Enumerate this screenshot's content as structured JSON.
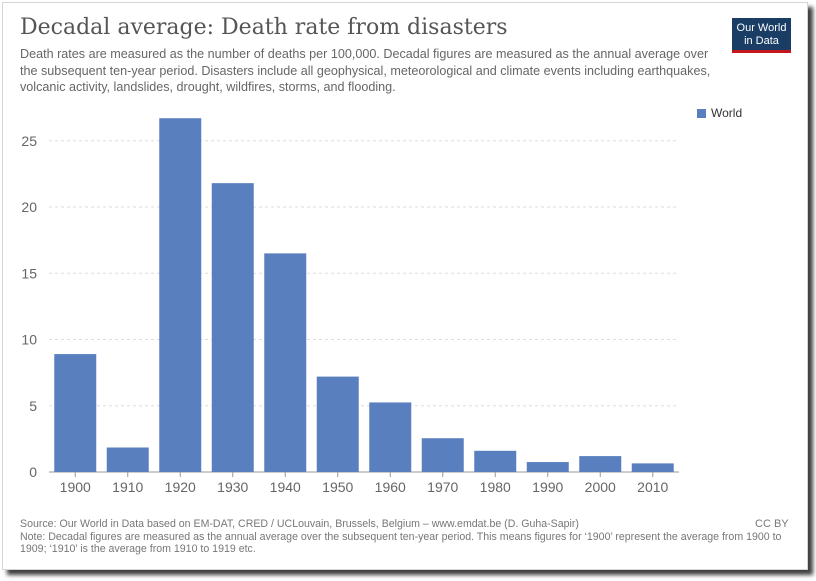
{
  "header": {
    "title": "Decadal average: Death rate from disasters",
    "subtitle": "Death rates are measured as the number of deaths per 100,000. Decadal figures are measured as the annual average over the subsequent ten-year period. Disasters include all geophysical, meteorological and climate events including earthquakes, volcanic activity, landslides, drought, wildfires, storms, and flooding."
  },
  "logo": {
    "line1": "Our World",
    "line2": "in Data"
  },
  "legend": {
    "label": "World",
    "color": "#5a7fbf"
  },
  "footer": {
    "source": "Source: Our World in Data based on EM-DAT, CRED / UCLouvain, Brussels, Belgium – www.emdat.be (D. Guha-Sapir)",
    "note": "Note: Decadal figures are measured as the annual average over the subsequent ten-year period. This means figures for ‘1900’ represent the average from 1900 to 1909; ‘1910’ is the average from 1910 to 1919 etc.",
    "license": "CC BY"
  },
  "chart_data": {
    "type": "bar",
    "categories": [
      "1900",
      "1910",
      "1920",
      "1930",
      "1940",
      "1950",
      "1960",
      "1970",
      "1980",
      "1990",
      "2000",
      "2010"
    ],
    "series": [
      {
        "name": "World",
        "values": [
          8.9,
          1.85,
          26.7,
          21.8,
          16.5,
          7.2,
          5.25,
          2.55,
          1.6,
          0.75,
          1.2,
          0.65
        ]
      }
    ],
    "y_ticks": [
      0,
      5,
      10,
      15,
      20,
      25
    ],
    "ylim": [
      0,
      28
    ],
    "grid": true,
    "legend_position": "top-right",
    "bar_color": "#5a7fbf"
  }
}
